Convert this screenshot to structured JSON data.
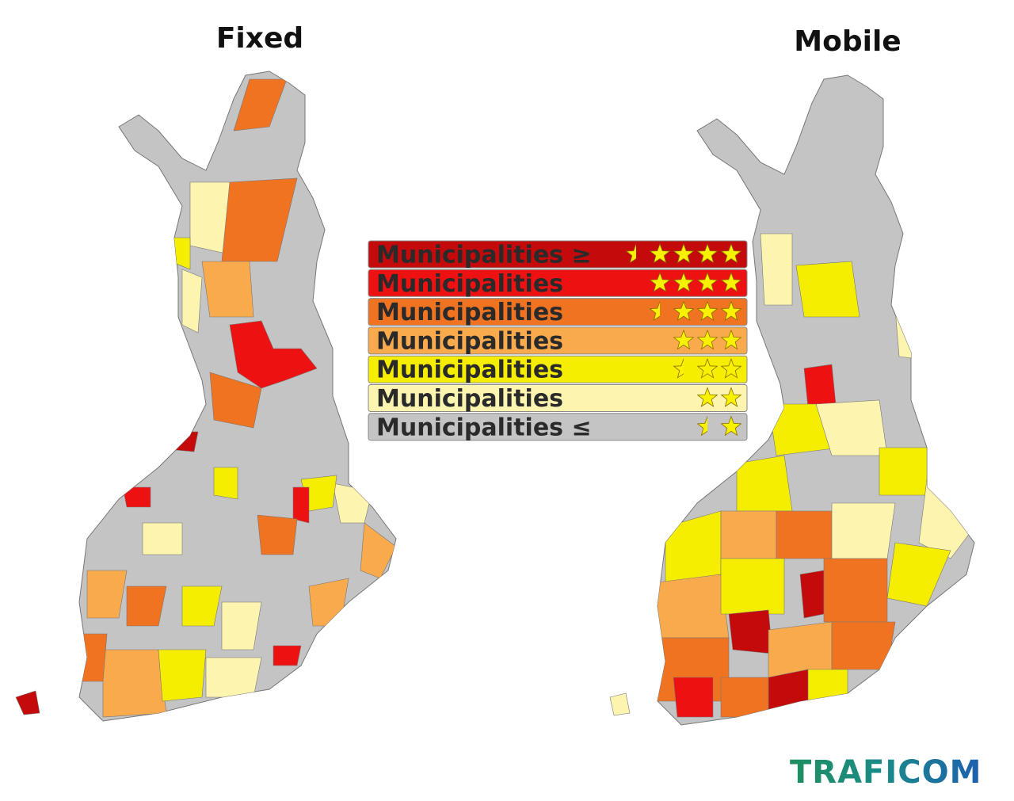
{
  "maps": [
    {
      "title": "Fixed"
    },
    {
      "title": "Mobile"
    }
  ],
  "legend": {
    "items": [
      {
        "label": "Municipalities ≥",
        "stars": 4.5,
        "color": "#c40a0a"
      },
      {
        "label": "Municipalities",
        "stars": 4,
        "color": "#ee1111"
      },
      {
        "label": "Municipalities",
        "stars": 3.5,
        "color": "#f07322"
      },
      {
        "label": "Municipalities",
        "stars": 3,
        "color": "#f9aa4d"
      },
      {
        "label": "Municipalities",
        "stars": 2.5,
        "color": "#f6ee00"
      },
      {
        "label": "Municipalities",
        "stars": 2,
        "color": "#fdf4b0"
      },
      {
        "label": "Municipalities ≤",
        "stars": 1.5,
        "color": "#c4c4c4"
      }
    ]
  },
  "logo": "TRAFICOM"
}
